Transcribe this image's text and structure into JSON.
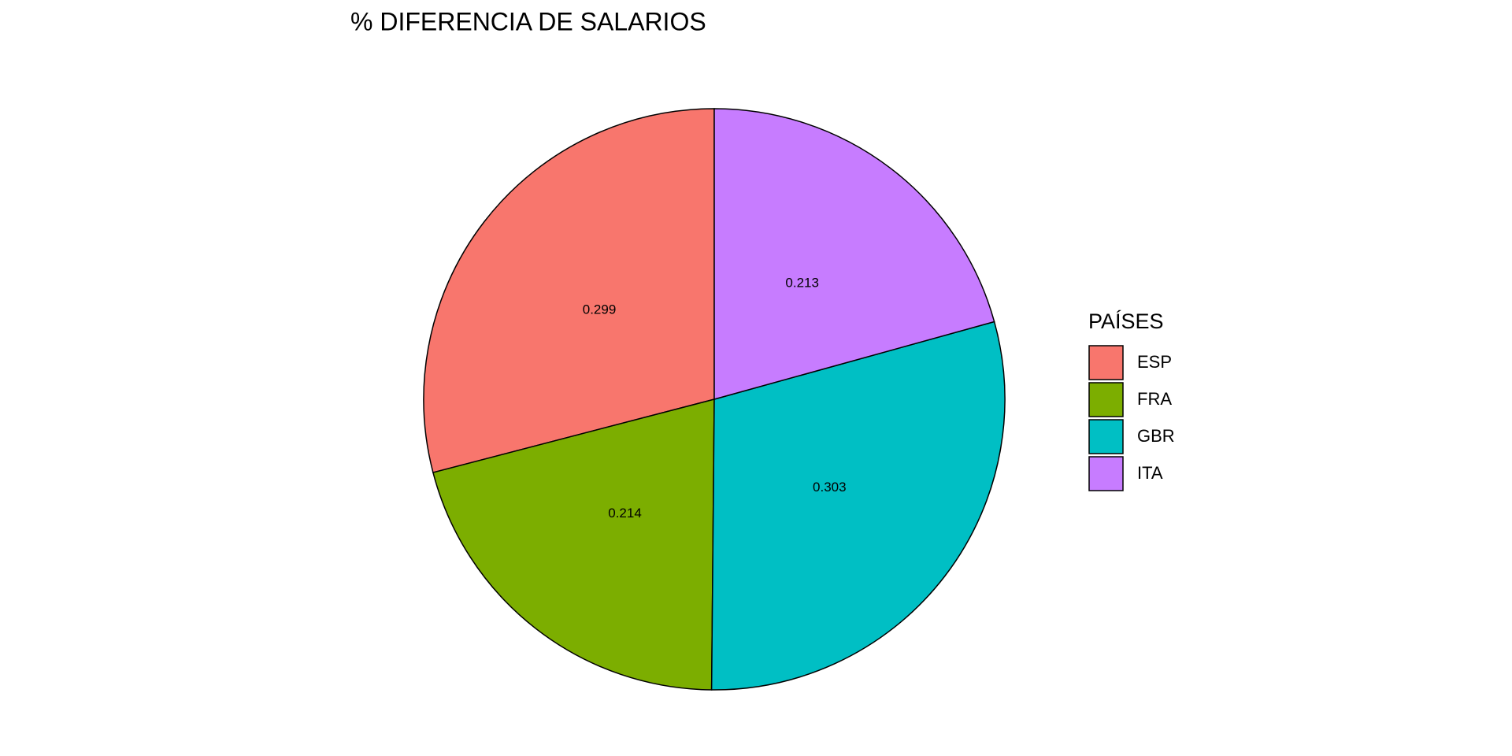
{
  "chart_data": {
    "type": "pie",
    "title": "% DIFERENCIA DE SALARIOS",
    "legend_title": "PAÍSES",
    "categories": [
      "ESP",
      "FRA",
      "GBR",
      "ITA"
    ],
    "values": [
      0.299,
      0.214,
      0.303,
      0.213
    ],
    "colors": [
      "#f8766d",
      "#7cae00",
      "#00bfc4",
      "#c77cff"
    ],
    "legend": "right"
  }
}
